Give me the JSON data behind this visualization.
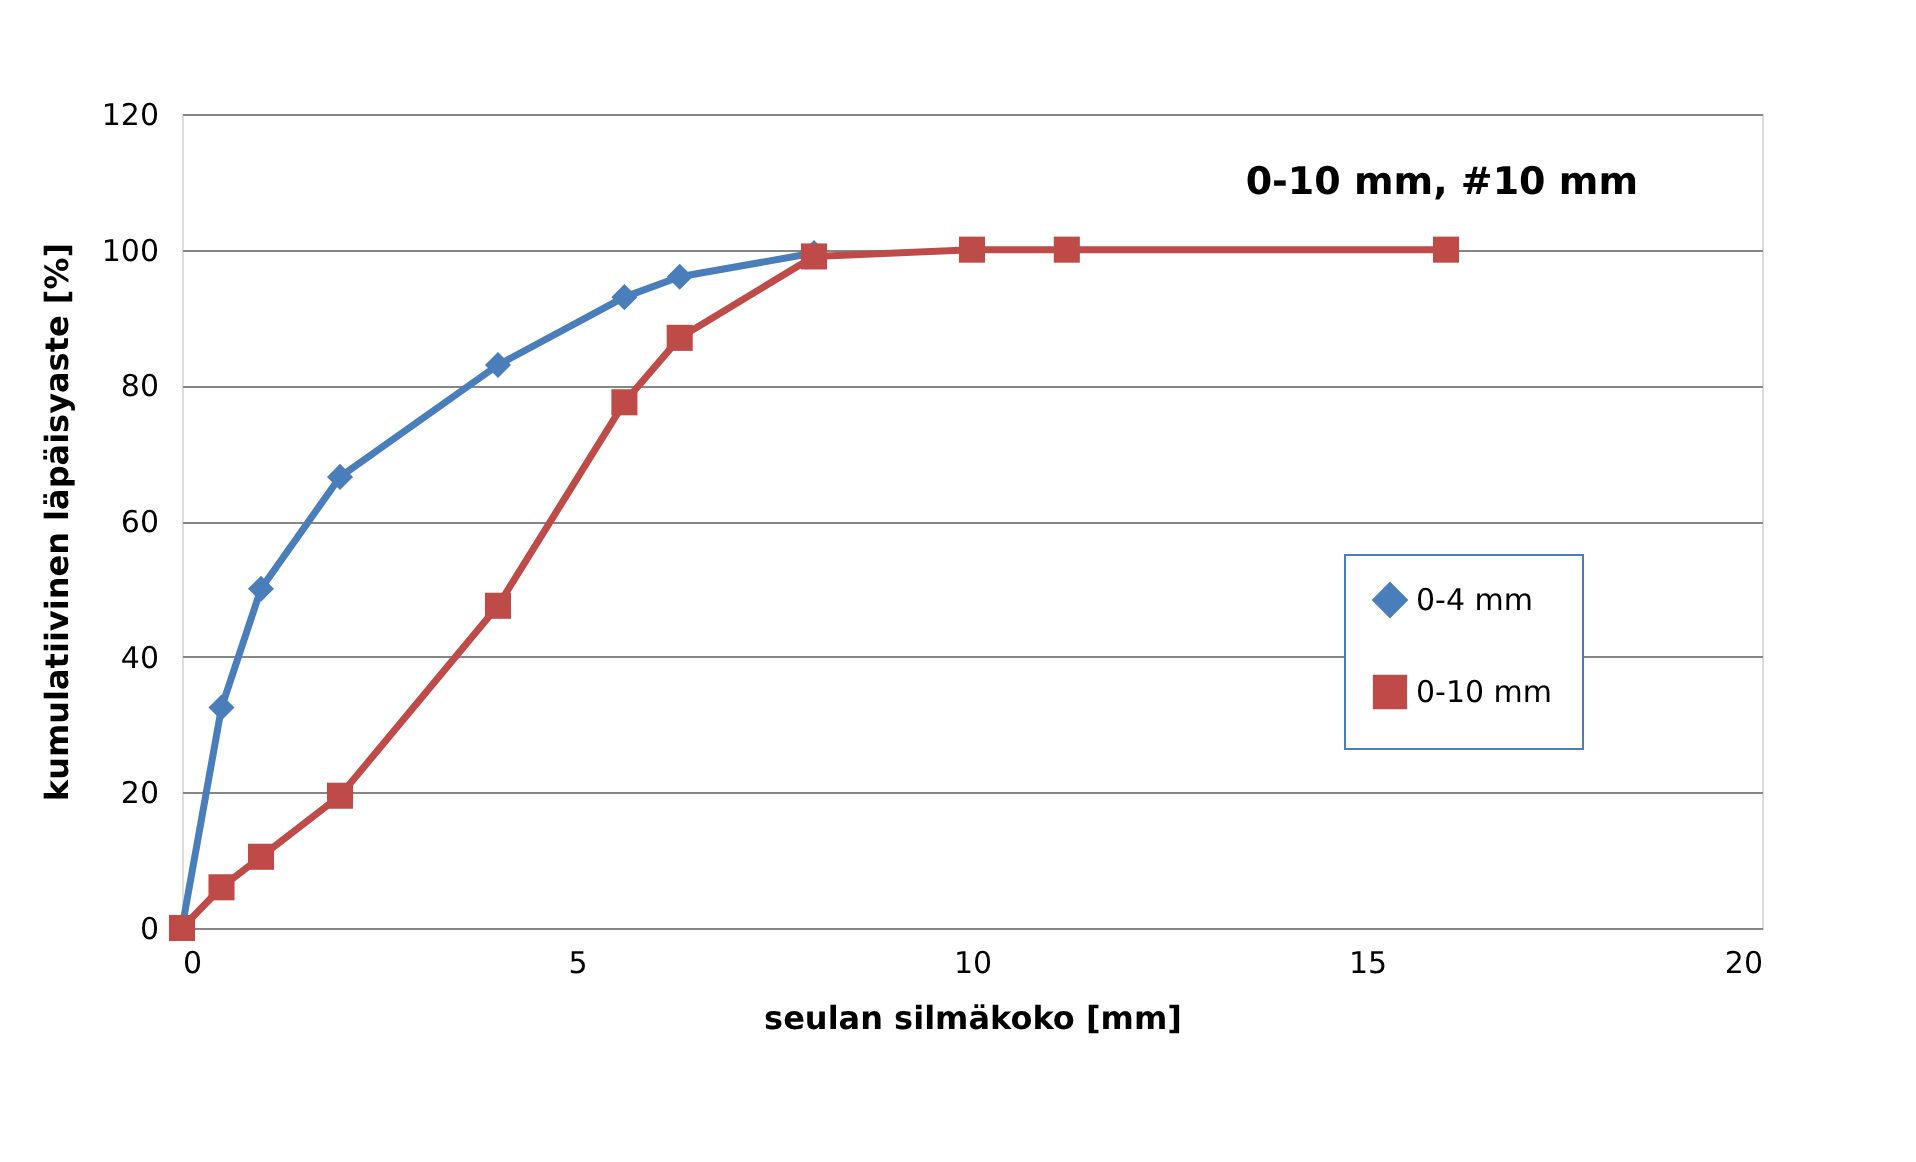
{
  "chart_data": {
    "type": "line",
    "xlabel": "seulan silmäkoko [mm]",
    "ylabel": "kumulatiivinen läpäisyaste  [%]",
    "annotations": [
      "0-10 mm, #10 mm"
    ],
    "series": [
      {
        "name": "0-4 mm",
        "color": "#4a7ebb",
        "marker": "diamond",
        "x": [
          0,
          0.5,
          1,
          2,
          4,
          5.6,
          6.3,
          8
        ],
        "values": [
          0,
          32.5,
          50,
          66.5,
          83,
          93,
          96,
          99.5
        ]
      },
      {
        "name": "0-10 mm",
        "color": "#be4b48",
        "marker": "square",
        "x": [
          0,
          0.5,
          1,
          2,
          4,
          5.6,
          6.3,
          8,
          10,
          11.2,
          16
        ],
        "values": [
          0,
          6,
          10.5,
          19.5,
          47.5,
          77.5,
          87,
          99,
          100,
          100,
          100
        ]
      }
    ],
    "xlim": [
      0,
      20
    ],
    "xticks": [
      0,
      5,
      10,
      15,
      20
    ],
    "ylim": [
      0,
      120
    ],
    "yticks": [
      0,
      20,
      40,
      60,
      80,
      100,
      120
    ],
    "grid": "y",
    "legend": "bottom right",
    "line_style": "solid"
  }
}
